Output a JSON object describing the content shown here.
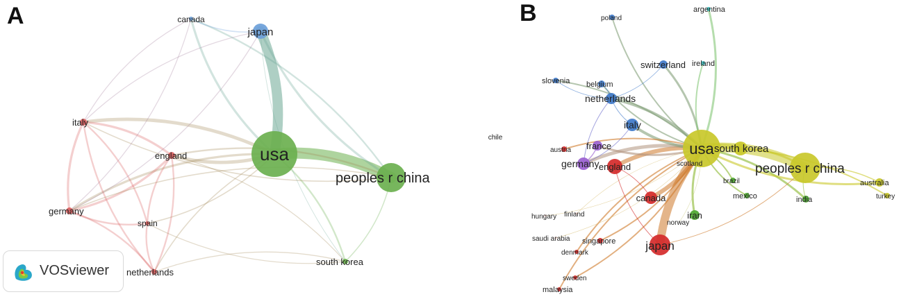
{
  "panels": [
    {
      "letter": "A",
      "nodes": [
        {
          "id": "usa",
          "label": "usa",
          "color": "#6bb04f",
          "weight": 1.0
        },
        {
          "id": "peoples r china",
          "label": "peoples r china",
          "color": "#6bb04f",
          "weight": 0.55
        },
        {
          "id": "japan",
          "label": "japan",
          "color": "#6c9fd9",
          "weight": 0.22
        },
        {
          "id": "canada",
          "label": "canada",
          "color": "#6c9fd9",
          "weight": 0.05
        },
        {
          "id": "italy",
          "label": "italy",
          "color": "#d95f5f",
          "weight": 0.08
        },
        {
          "id": "england",
          "label": "england",
          "color": "#d95f5f",
          "weight": 0.08
        },
        {
          "id": "germany",
          "label": "germany",
          "color": "#d95f5f",
          "weight": 0.07
        },
        {
          "id": "spain",
          "label": "spain",
          "color": "#d95f5f",
          "weight": 0.04
        },
        {
          "id": "netherlands",
          "label": "netherlands",
          "color": "#d95f5f",
          "weight": 0.05
        },
        {
          "id": "south korea",
          "label": "south korea",
          "color": "#6bb04f",
          "weight": 0.07
        }
      ],
      "links": [
        [
          "usa",
          "peoples r china",
          10
        ],
        [
          "usa",
          "japan",
          9
        ],
        [
          "usa",
          "canada",
          2
        ],
        [
          "usa",
          "italy",
          3
        ],
        [
          "usa",
          "england",
          3
        ],
        [
          "usa",
          "germany",
          2
        ],
        [
          "usa",
          "spain",
          1
        ],
        [
          "usa",
          "netherlands",
          1
        ],
        [
          "usa",
          "south korea",
          1.5
        ],
        [
          "japan",
          "peoples r china",
          2
        ],
        [
          "canada",
          "peoples r china",
          1.5
        ],
        [
          "canada",
          "japan",
          1
        ],
        [
          "italy",
          "england",
          2
        ],
        [
          "italy",
          "germany",
          2
        ],
        [
          "italy",
          "spain",
          1.5
        ],
        [
          "italy",
          "netherlands",
          1.5
        ],
        [
          "england",
          "germany",
          2
        ],
        [
          "england",
          "spain",
          1.5
        ],
        [
          "england",
          "netherlands",
          1.5
        ],
        [
          "germany",
          "spain",
          1.5
        ],
        [
          "germany",
          "netherlands",
          1.5
        ],
        [
          "spain",
          "netherlands",
          1.5
        ],
        [
          "england",
          "peoples r china",
          1.5
        ],
        [
          "italy",
          "peoples r china",
          1
        ],
        [
          "germany",
          "peoples r china",
          1
        ],
        [
          "south korea",
          "peoples r china",
          1
        ],
        [
          "italy",
          "japan",
          0.8
        ],
        [
          "germany",
          "japan",
          0.8
        ],
        [
          "england",
          "south korea",
          0.8
        ],
        [
          "canada",
          "italy",
          0.8
        ],
        [
          "canada",
          "germany",
          0.8
        ],
        [
          "spain",
          "south korea",
          0.8
        ],
        [
          "netherlands",
          "south korea",
          0.8
        ],
        [
          "japan",
          "south korea",
          0.6
        ]
      ]
    },
    {
      "letter": "B",
      "nodes": [
        {
          "id": "usa",
          "label": "usa",
          "color": "#c9c82a",
          "weight": 1.0,
          "faint": false
        },
        {
          "id": "peoples r china",
          "label": "peoples r china",
          "color": "#c9c82a",
          "weight": 0.85,
          "faint": false
        },
        {
          "id": "south korea",
          "label": "south korea",
          "color": "#c9c82a",
          "weight": 0.2,
          "faint": false
        },
        {
          "id": "australia",
          "label": "australia",
          "color": "#c9c82a",
          "weight": 0.06,
          "faint": false
        },
        {
          "id": "turkey",
          "label": "turkey",
          "color": "#c9c82a",
          "weight": 0.04,
          "faint": false
        },
        {
          "id": "japan",
          "label": "japan",
          "color": "#d42a2a",
          "weight": 0.42,
          "faint": false
        },
        {
          "id": "canada",
          "label": "canada",
          "color": "#d42a2a",
          "weight": 0.12,
          "faint": false
        },
        {
          "id": "england",
          "label": "england",
          "color": "#d42a2a",
          "weight": 0.2,
          "faint": false
        },
        {
          "id": "austria",
          "label": "austria",
          "color": "#d42a2a",
          "weight": 0.04,
          "faint": false
        },
        {
          "id": "singapore",
          "label": "singapore",
          "color": "#d42a2a",
          "weight": 0.04,
          "faint": false
        },
        {
          "id": "denmark",
          "label": "denmark",
          "color": "#d42a2a",
          "weight": 0.04,
          "faint": false
        },
        {
          "id": "sweden",
          "label": "sweden",
          "color": "#d42a2a",
          "weight": 0.04,
          "faint": false
        },
        {
          "id": "malaysia",
          "label": "malaysia",
          "color": "#d42a2a",
          "weight": 0.04,
          "faint": false
        },
        {
          "id": "hungary",
          "label": "hungary",
          "color": "#e6b3b3",
          "weight": 0.02,
          "faint": true
        },
        {
          "id": "finland",
          "label": "finland",
          "color": "#e6b3b3",
          "weight": 0.02,
          "faint": true
        },
        {
          "id": "saudi arabia",
          "label": "saudi arabia",
          "color": "#e6b3b3",
          "weight": 0.02,
          "faint": true
        },
        {
          "id": "chile",
          "label": "chile",
          "color": "#cccccc",
          "weight": 0.02,
          "faint": true
        },
        {
          "id": "norway",
          "label": "norway",
          "color": "#cccccc",
          "weight": 0.02,
          "faint": true
        },
        {
          "id": "scotland",
          "label": "scotland",
          "color": "#cccccc",
          "weight": 0.02,
          "faint": true
        },
        {
          "id": "france",
          "label": "france",
          "color": "#9a5fd0",
          "weight": 0.08,
          "faint": false
        },
        {
          "id": "germany",
          "label": "germany",
          "color": "#9a5fd0",
          "weight": 0.16,
          "faint": false
        },
        {
          "id": "italy",
          "label": "italy",
          "color": "#3f79c9",
          "weight": 0.18,
          "faint": false
        },
        {
          "id": "netherlands",
          "label": "netherlands",
          "color": "#3f79c9",
          "weight": 0.14,
          "faint": false
        },
        {
          "id": "belgium",
          "label": "belgium",
          "color": "#3f79c9",
          "weight": 0.06,
          "faint": false
        },
        {
          "id": "switzerland",
          "label": "switzerland",
          "color": "#3f79c9",
          "weight": 0.08,
          "faint": false
        },
        {
          "id": "slovenia",
          "label": "slovenia",
          "color": "#3f79c9",
          "weight": 0.04,
          "faint": false
        },
        {
          "id": "poland",
          "label": "poland",
          "color": "#3f79c9",
          "weight": 0.04,
          "faint": false
        },
        {
          "id": "ireland",
          "label": "ireland",
          "color": "#3fc4c4",
          "weight": 0.04,
          "faint": false
        },
        {
          "id": "argentina",
          "label": "argentina",
          "color": "#3fc4c4",
          "weight": 0.04,
          "faint": false
        },
        {
          "id": "iran",
          "label": "iran",
          "color": "#4ea832",
          "weight": 0.08,
          "faint": false
        },
        {
          "id": "india",
          "label": "india",
          "color": "#4ea832",
          "weight": 0.06,
          "faint": false
        },
        {
          "id": "mexico",
          "label": "mexico",
          "color": "#4ea832",
          "weight": 0.04,
          "faint": false
        },
        {
          "id": "brazil",
          "label": "brazil",
          "color": "#4ea832",
          "weight": 0.04,
          "faint": false
        }
      ],
      "links": [
        [
          "usa",
          "peoples r china",
          14
        ],
        [
          "usa",
          "japan",
          12
        ],
        [
          "usa",
          "canada",
          6
        ],
        [
          "usa",
          "england",
          6
        ],
        [
          "usa",
          "south korea",
          6
        ],
        [
          "usa",
          "germany",
          5
        ],
        [
          "usa",
          "italy",
          4
        ],
        [
          "usa",
          "netherlands",
          4
        ],
        [
          "usa",
          "france",
          3
        ],
        [
          "usa",
          "switzerland",
          3
        ],
        [
          "usa",
          "belgium",
          2
        ],
        [
          "usa",
          "slovenia",
          2
        ],
        [
          "usa",
          "poland",
          2
        ],
        [
          "usa",
          "argentina",
          3
        ],
        [
          "usa",
          "ireland",
          2
        ],
        [
          "usa",
          "iran",
          3
        ],
        [
          "usa",
          "india",
          3
        ],
        [
          "usa",
          "australia",
          3
        ],
        [
          "usa",
          "turkey",
          2
        ],
        [
          "usa",
          "mexico",
          2
        ],
        [
          "usa",
          "brazil",
          2
        ],
        [
          "usa",
          "austria",
          2
        ],
        [
          "usa",
          "singapore",
          2
        ],
        [
          "usa",
          "denmark",
          2
        ],
        [
          "usa",
          "sweden",
          2
        ],
        [
          "usa",
          "malaysia",
          2
        ],
        [
          "usa",
          "hungary",
          0.5
        ],
        [
          "usa",
          "finland",
          0.5
        ],
        [
          "usa",
          "saudi arabia",
          0.5
        ],
        [
          "usa",
          "scotland",
          0.8
        ],
        [
          "usa",
          "norway",
          0.5
        ],
        [
          "peoples r china",
          "south korea",
          3
        ],
        [
          "peoples r china",
          "australia",
          1.5
        ],
        [
          "peoples r china",
          "india",
          1
        ],
        [
          "peoples r china",
          "japan",
          1
        ],
        [
          "germany",
          "italy",
          1
        ],
        [
          "germany",
          "netherlands",
          1
        ],
        [
          "netherlands",
          "belgium",
          1
        ],
        [
          "italy",
          "netherlands",
          1
        ],
        [
          "slovenia",
          "netherlands",
          0.8
        ],
        [
          "switzerland",
          "netherlands",
          0.8
        ],
        [
          "england",
          "japan",
          1
        ],
        [
          "france",
          "germany",
          1.5
        ],
        [
          "canada",
          "england",
          1
        ]
      ]
    }
  ],
  "vosviewer": {
    "label": "VOSviewer"
  }
}
